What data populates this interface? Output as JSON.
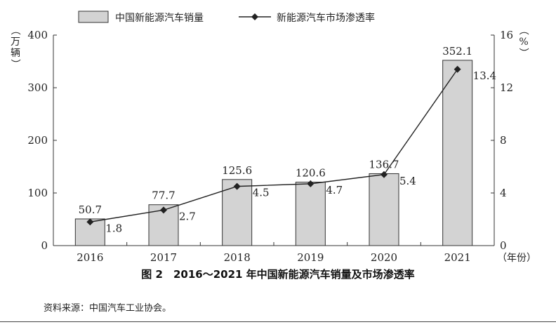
{
  "chart_data": {
    "type": "bar",
    "categories": [
      "2016",
      "2017",
      "2018",
      "2019",
      "2020",
      "2021"
    ],
    "series": [
      {
        "name": "中国新能源汽车销量",
        "type": "bar",
        "axis": "left",
        "values": [
          50.7,
          77.7,
          125.6,
          120.6,
          136.7,
          352.1
        ],
        "labels": [
          "50.7",
          "77.7",
          "125.6",
          "120.6",
          "136.7",
          "352.1"
        ]
      },
      {
        "name": "新能源汽车市场渗透率",
        "type": "line",
        "axis": "right",
        "values": [
          1.8,
          2.7,
          4.5,
          4.7,
          5.4,
          13.4
        ],
        "labels": [
          "1.8",
          "2.7",
          "4.5",
          "4.7",
          "5.4",
          "13.4"
        ]
      }
    ],
    "ylabel_left": "（万辆）",
    "ylabel_right": "（%）",
    "xlabel": "（年份）",
    "ylim_left": [
      0,
      400
    ],
    "yticks_left": [
      "0",
      "100",
      "200",
      "300",
      "400"
    ],
    "ylim_right": [
      0,
      16
    ],
    "yticks_right": [
      "0",
      "4",
      "8",
      "12",
      "16"
    ],
    "grid": false,
    "legend_position": "top",
    "colors": {
      "bar_fill": "#d3d3d3",
      "bar_stroke": "#333333",
      "line": "#222222"
    }
  },
  "caption": "图 2　2016～2021 年中国新能源汽车销量及市场渗透率",
  "source": "资料来源：中国汽车工业协会。"
}
